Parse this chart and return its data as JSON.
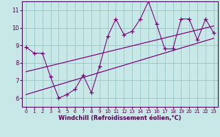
{
  "xlabel": "Windchill (Refroidissement éolien,°C)",
  "xlim": [
    -0.5,
    23.5
  ],
  "ylim": [
    5.5,
    11.5
  ],
  "yticks": [
    6,
    7,
    8,
    9,
    10,
    11
  ],
  "xticks": [
    0,
    1,
    2,
    3,
    4,
    5,
    6,
    7,
    8,
    9,
    10,
    11,
    12,
    13,
    14,
    15,
    16,
    17,
    18,
    19,
    20,
    21,
    22,
    23
  ],
  "bg_color": "#c8e8e8",
  "line_color": "#780078",
  "grid_color": "#a0c8c8",
  "data_x": [
    0,
    1,
    2,
    3,
    4,
    5,
    6,
    7,
    8,
    9,
    10,
    11,
    12,
    13,
    14,
    15,
    16,
    17,
    18,
    19,
    20,
    21,
    22,
    23
  ],
  "data_y": [
    8.9,
    8.55,
    8.55,
    7.2,
    6.0,
    6.2,
    6.5,
    7.3,
    6.3,
    7.8,
    9.5,
    10.5,
    9.6,
    9.8,
    10.5,
    11.5,
    10.2,
    8.8,
    8.8,
    10.5,
    10.5,
    9.3,
    10.5,
    9.7
  ],
  "trend1_x": [
    0,
    23
  ],
  "trend1_y": [
    7.5,
    10.1
  ],
  "trend2_x": [
    0,
    23
  ],
  "trend2_y": [
    6.2,
    9.4
  ]
}
